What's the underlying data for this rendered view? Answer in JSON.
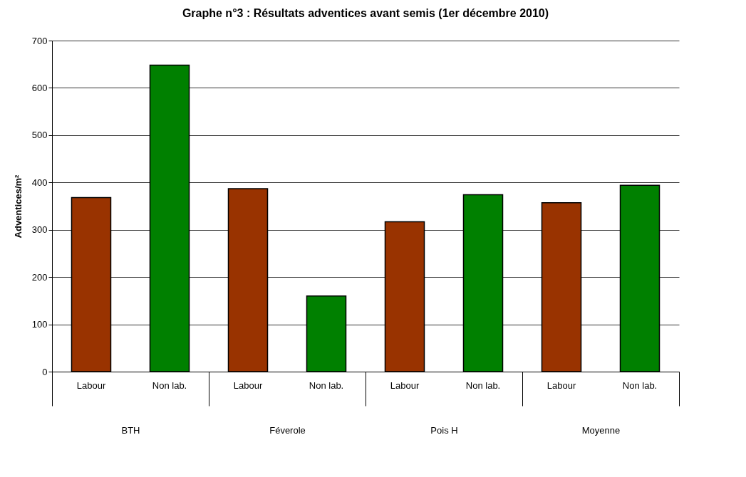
{
  "chart_data": {
    "type": "bar",
    "title": "Graphe n°3 : Résultats adventices avant semis (1er décembre 2010)",
    "ylabel": "Adventices/m²",
    "categories": [
      "BTH",
      "Féverole",
      "Pois H",
      "Moyenne"
    ],
    "series": [
      {
        "name": "Labour",
        "color": "#993300",
        "values": [
          368,
          387,
          317,
          357
        ]
      },
      {
        "name": "Non lab.",
        "color": "#008000",
        "values": [
          648,
          160,
          374,
          394
        ]
      }
    ],
    "ylim": [
      0,
      700
    ],
    "yticks": [
      0,
      100,
      200,
      300,
      400,
      500,
      600,
      700
    ],
    "grid": "y"
  }
}
